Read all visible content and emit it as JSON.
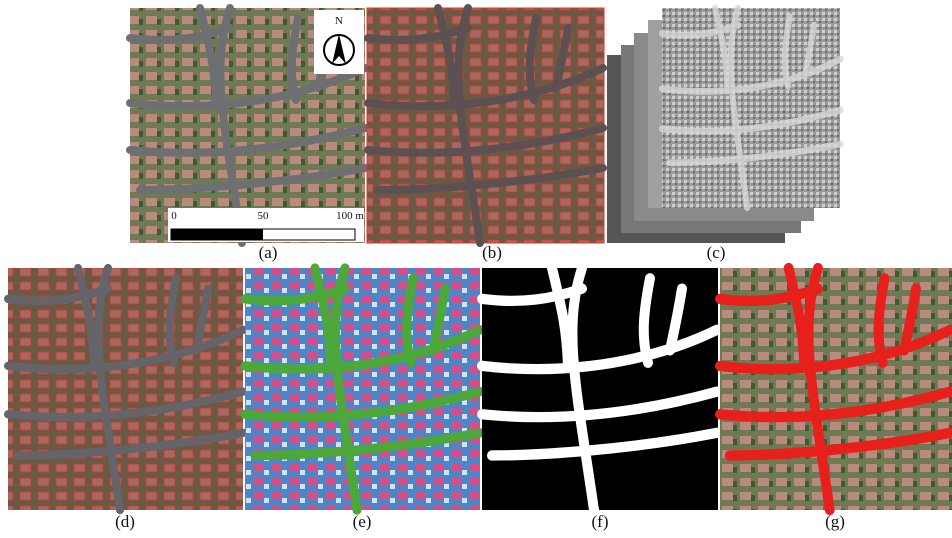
{
  "figure": {
    "north_label": "N",
    "scale_labels": [
      "0",
      "50",
      "100 m"
    ],
    "panel_labels": [
      "(a)",
      "(b)",
      "(c)",
      "(d)",
      "(e)",
      "(f)",
      "(g)"
    ]
  }
}
